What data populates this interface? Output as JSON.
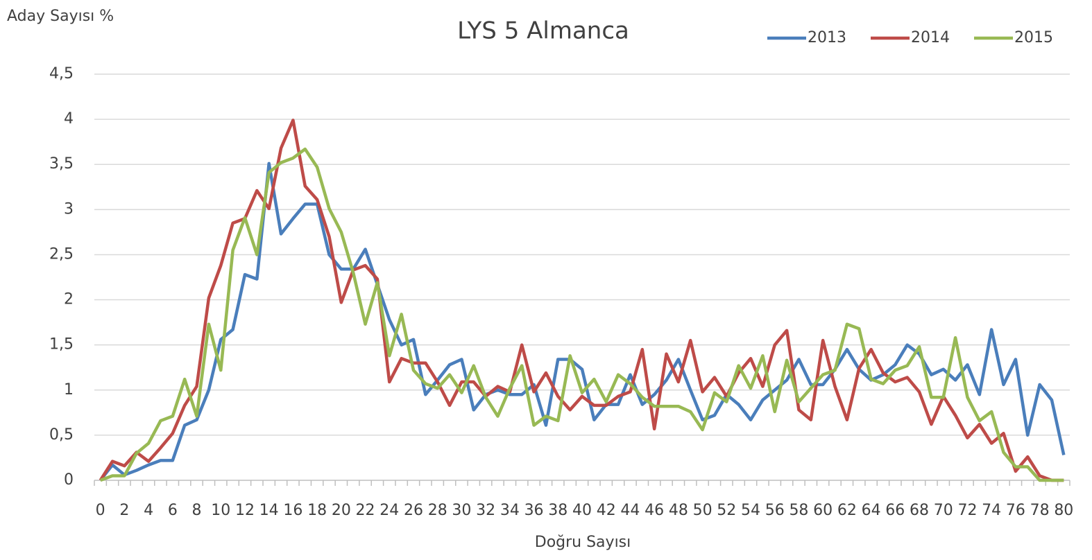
{
  "chart_data": {
    "type": "line",
    "title": "LYS 5 Almanca",
    "y_label": "Aday Sayısı %",
    "x_label": "Doğru Sayısı",
    "categories": [
      "0",
      null,
      "2",
      null,
      "4",
      null,
      "6",
      null,
      "8",
      null,
      "10",
      null,
      "12",
      null,
      "14",
      null,
      "16",
      null,
      "18",
      null,
      "20",
      null,
      "22",
      null,
      "24",
      null,
      "26",
      null,
      "28",
      null,
      "30",
      null,
      "32",
      null,
      "34",
      null,
      "36",
      null,
      "38",
      null,
      "40",
      null,
      "42",
      null,
      "44",
      null,
      "46",
      null,
      "48",
      null,
      "50",
      null,
      "52",
      null,
      "54",
      null,
      "56",
      null,
      "58",
      null,
      "60",
      null,
      "62",
      null,
      "64",
      null,
      "66",
      null,
      "68",
      null,
      "70",
      null,
      "72",
      null,
      "74",
      null,
      "76",
      null,
      "78",
      null,
      "80"
    ],
    "series": [
      {
        "name": "2013",
        "color": "#4a7ebb",
        "values": [
          0,
          0.17,
          0.06,
          0.11,
          0.17,
          0.22,
          0.22,
          0.61,
          0.67,
          1.0,
          1.56,
          1.67,
          2.28,
          2.23,
          3.51,
          2.73,
          2.9,
          3.06,
          3.06,
          2.5,
          2.34,
          2.34,
          2.56,
          2.17,
          1.78,
          1.5,
          1.56,
          0.95,
          1.11,
          1.28,
          1.34,
          0.78,
          0.95,
          1.0,
          0.95,
          0.95,
          1.06,
          0.61,
          1.34,
          1.34,
          1.23,
          0.67,
          0.84,
          0.84,
          1.17,
          0.84,
          0.95,
          1.11,
          1.34,
          1.0,
          0.67,
          0.72,
          0.95,
          0.84,
          0.67,
          0.89,
          1.0,
          1.11,
          1.34,
          1.06,
          1.06,
          1.23,
          1.45,
          1.23,
          1.11,
          1.17,
          1.28,
          1.5,
          1.4,
          1.17,
          1.23,
          1.11,
          1.28,
          0.95,
          1.67,
          1.06,
          1.34,
          0.5,
          1.06,
          0.89,
          0.28
        ]
      },
      {
        "name": "2014",
        "color": "#be4b48",
        "values": [
          0,
          0.21,
          0.16,
          0.31,
          0.21,
          0.36,
          0.52,
          0.83,
          1.04,
          2.02,
          2.38,
          2.85,
          2.9,
          3.21,
          3.01,
          3.68,
          3.99,
          3.26,
          3.11,
          2.7,
          1.97,
          2.33,
          2.38,
          2.23,
          1.09,
          1.35,
          1.3,
          1.3,
          1.09,
          0.83,
          1.09,
          1.09,
          0.93,
          1.04,
          0.98,
          1.5,
          0.98,
          1.19,
          0.93,
          0.78,
          0.93,
          0.83,
          0.83,
          0.93,
          0.98,
          1.45,
          0.57,
          1.4,
          1.09,
          1.55,
          0.98,
          1.14,
          0.93,
          1.19,
          1.35,
          1.04,
          1.5,
          1.66,
          0.78,
          0.67,
          1.55,
          1.04,
          0.67,
          1.24,
          1.45,
          1.19,
          1.09,
          1.14,
          0.98,
          0.62,
          0.93,
          0.72,
          0.47,
          0.62,
          0.41,
          0.52,
          0.1,
          0.26,
          0.05,
          0,
          0
        ]
      },
      {
        "name": "2015",
        "color": "#98b954",
        "values": [
          0,
          0.05,
          0.05,
          0.3,
          0.41,
          0.66,
          0.71,
          1.12,
          0.71,
          1.73,
          1.22,
          2.55,
          2.91,
          2.5,
          3.41,
          3.52,
          3.57,
          3.67,
          3.47,
          3.01,
          2.75,
          2.3,
          1.73,
          2.19,
          1.38,
          1.84,
          1.22,
          1.07,
          1.02,
          1.17,
          0.97,
          1.27,
          0.92,
          0.71,
          1.02,
          1.27,
          0.61,
          0.71,
          0.66,
          1.38,
          0.97,
          1.12,
          0.87,
          1.17,
          1.07,
          0.92,
          0.82,
          0.82,
          0.82,
          0.76,
          0.56,
          0.97,
          0.87,
          1.27,
          1.02,
          1.38,
          0.76,
          1.33,
          0.87,
          1.02,
          1.17,
          1.22,
          1.73,
          1.68,
          1.12,
          1.07,
          1.22,
          1.27,
          1.48,
          0.92,
          0.92,
          1.58,
          0.92,
          0.66,
          0.76,
          0.31,
          0.15,
          0.15,
          0,
          0,
          0
        ]
      }
    ],
    "ylim": [
      0,
      4.5
    ],
    "yticks": [
      0,
      {
        "value": 0.5,
        "label": "0,5"
      },
      1,
      {
        "value": 1.5,
        "label": "1,5"
      },
      2,
      {
        "value": 2.5,
        "label": "2,5"
      },
      3,
      {
        "value": 3.5,
        "label": "3,5"
      },
      4,
      {
        "value": 4.5,
        "label": "4,5"
      }
    ],
    "grid": true,
    "legend": "top-right"
  }
}
